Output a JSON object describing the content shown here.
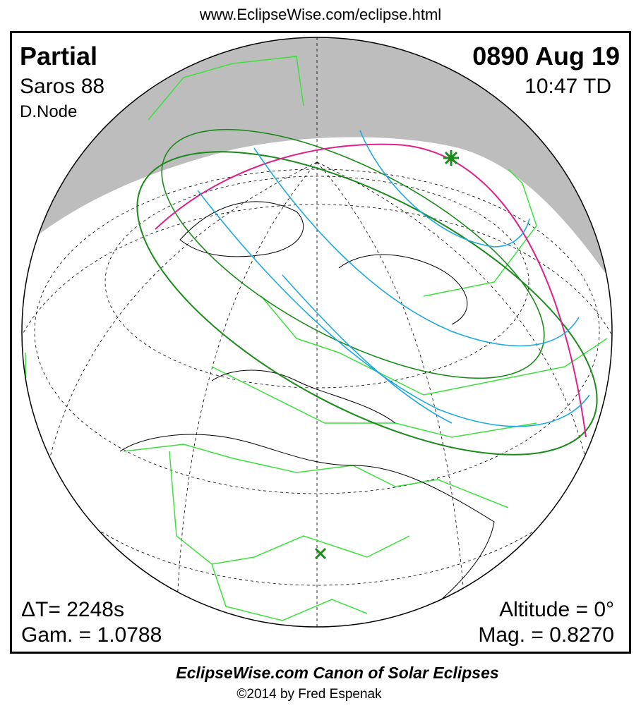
{
  "header": {
    "url": "www.EclipseWise.com/eclipse.html"
  },
  "panel": {
    "type": "Partial",
    "saros": "Saros  88",
    "node": "D.Node",
    "date": "0890 Aug 19",
    "time": "10:47 TD",
    "delta_t": "ΔT=   2248s",
    "gamma": "Gam. = 1.0788",
    "altitude": "Altitude =  0°",
    "magnitude": "Mag. = 0.8270"
  },
  "footer": {
    "title": "EclipseWise.com Canon of Solar Eclipses",
    "copyright": "©2014 by Fred Espenak"
  }
}
